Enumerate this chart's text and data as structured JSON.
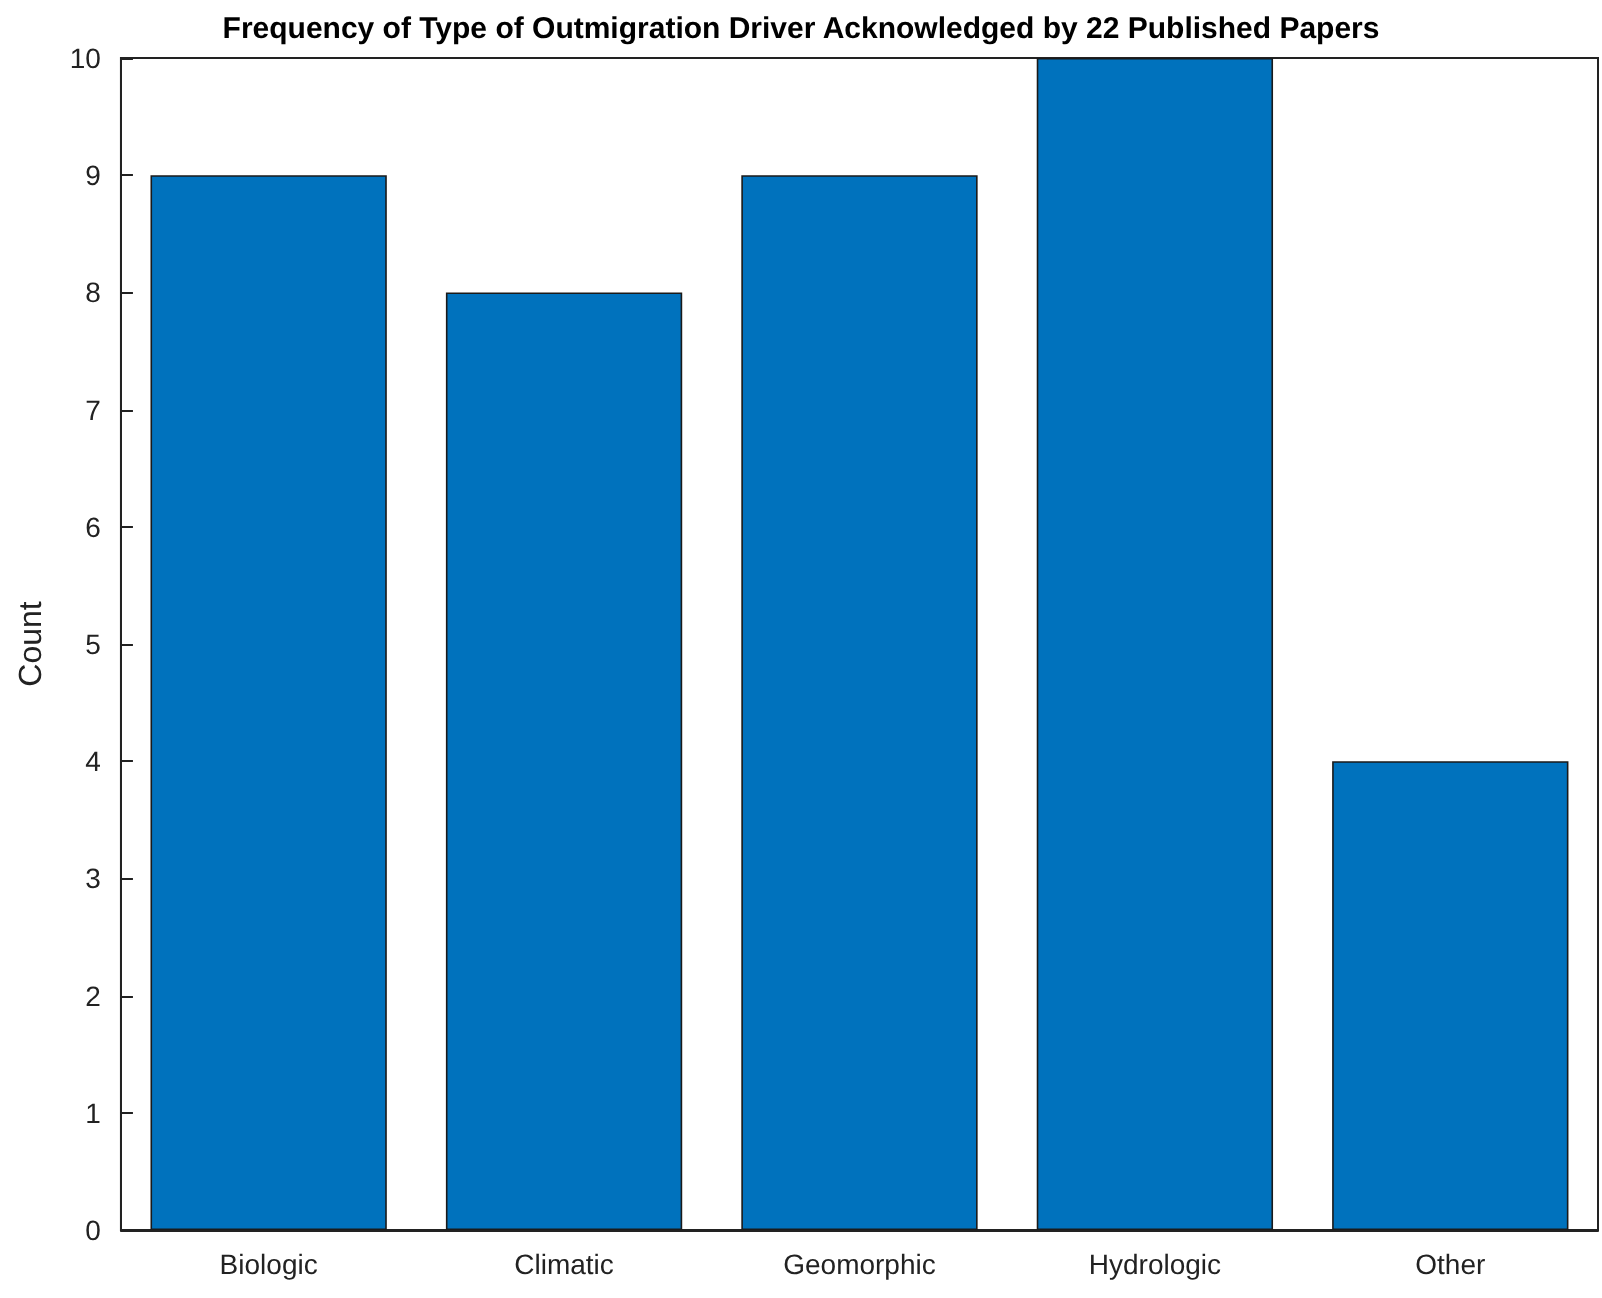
{
  "chart_data": {
    "type": "bar",
    "title": "Frequency of Type of Outmigration Driver Acknowledged by 22 Published Papers",
    "ylabel": "Count",
    "categories": [
      "Biologic",
      "Climatic",
      "Geomorphic",
      "Hydrologic",
      "Other"
    ],
    "values": [
      9,
      8,
      9,
      10,
      4
    ],
    "color": "#0072bd",
    "ylim": [
      0,
      10
    ],
    "yticks": [
      0,
      1,
      2,
      3,
      4,
      5,
      6,
      7,
      8,
      9,
      10
    ],
    "grid": false
  }
}
